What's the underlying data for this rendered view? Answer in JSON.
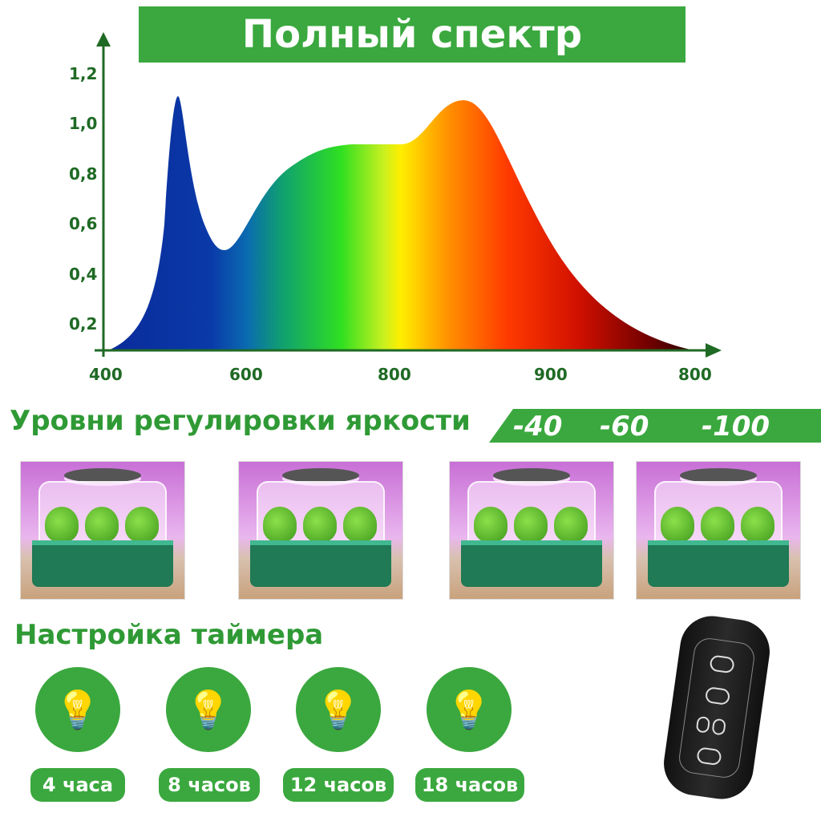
{
  "title": "Полный спектр",
  "chart": {
    "y_ticks": [
      "1,2",
      "1,0",
      "0,8",
      "0,6",
      "0,4",
      "0,2"
    ],
    "x_ticks": [
      "400",
      "600",
      "800",
      "900",
      "800"
    ]
  },
  "brightness": {
    "heading": "Уровни регулировки яркости",
    "levels": [
      "-40",
      "-60",
      "-100"
    ]
  },
  "timer": {
    "heading": "Настройка таймера",
    "options": [
      "4 часа",
      "8 часов",
      "12 часов",
      "18 часов"
    ],
    "icon": "light-bulb-icon"
  },
  "colors": {
    "accent": "#3aa83e",
    "axis": "#1f6a25"
  }
}
